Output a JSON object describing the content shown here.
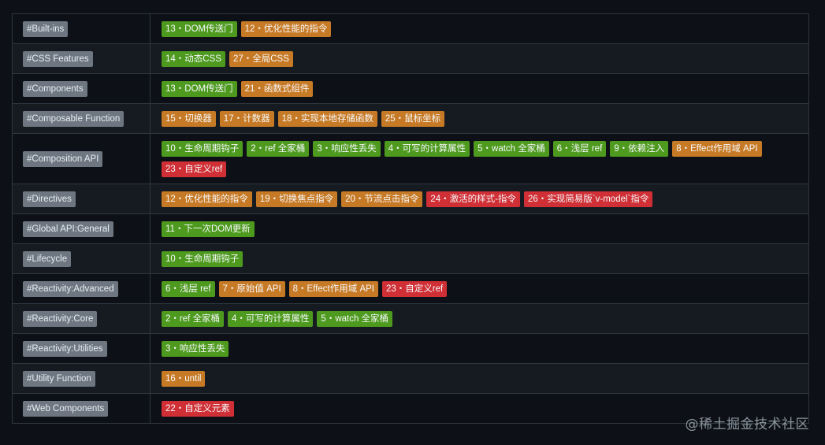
{
  "colors": {
    "background": "#0d1117",
    "row_alt": "#161b22",
    "border": "#30363d",
    "category_badge": "#6e7681",
    "easy": "#4d9a1e",
    "medium": "#c77a25",
    "hard": "#cf2f35"
  },
  "rows": [
    {
      "category": "#Built-ins",
      "items": [
        {
          "label": "13・DOM传送门",
          "level": "green"
        },
        {
          "label": "12・优化性能的指令",
          "level": "orange"
        }
      ]
    },
    {
      "category": "#CSS Features",
      "items": [
        {
          "label": "14・动态CSS",
          "level": "green"
        },
        {
          "label": "27・全局CSS",
          "level": "orange"
        }
      ]
    },
    {
      "category": "#Components",
      "items": [
        {
          "label": "13・DOM传送门",
          "level": "green"
        },
        {
          "label": "21・函数式组件",
          "level": "orange"
        }
      ]
    },
    {
      "category": "#Composable Function",
      "items": [
        {
          "label": "15・切换器",
          "level": "orange"
        },
        {
          "label": "17・计数器",
          "level": "orange"
        },
        {
          "label": "18・实现本地存储函数",
          "level": "orange"
        },
        {
          "label": "25・鼠标坐标",
          "level": "orange"
        }
      ]
    },
    {
      "category": "#Composition API",
      "items": [
        {
          "label": "10・生命周期钩子",
          "level": "green"
        },
        {
          "label": "2・ref 全家桶",
          "level": "green"
        },
        {
          "label": "3・响应性丢失",
          "level": "green"
        },
        {
          "label": "4・可写的计算属性",
          "level": "green"
        },
        {
          "label": "5・watch 全家桶",
          "level": "green"
        },
        {
          "label": "6・浅层 ref",
          "level": "green"
        },
        {
          "label": "9・依赖注入",
          "level": "green"
        },
        {
          "label": "8・Effect作用域 API",
          "level": "orange"
        },
        {
          "label": "23・自定义ref",
          "level": "red"
        }
      ]
    },
    {
      "category": "#Directives",
      "items": [
        {
          "label": "12・优化性能的指令",
          "level": "orange"
        },
        {
          "label": "19・切换焦点指令",
          "level": "orange"
        },
        {
          "label": "20・节流点击指令",
          "level": "orange"
        },
        {
          "label": "24・激活的样式-指令",
          "level": "red"
        },
        {
          "label": "26・实现简易版`v-model`指令",
          "level": "red"
        }
      ]
    },
    {
      "category": "#Global API:General",
      "items": [
        {
          "label": "11・下一次DOM更新",
          "level": "green"
        }
      ]
    },
    {
      "category": "#Lifecycle",
      "items": [
        {
          "label": "10・生命周期钩子",
          "level": "green"
        }
      ]
    },
    {
      "category": "#Reactivity:Advanced",
      "items": [
        {
          "label": "6・浅层 ref",
          "level": "green"
        },
        {
          "label": "7・原始值 API",
          "level": "orange"
        },
        {
          "label": "8・Effect作用域 API",
          "level": "orange"
        },
        {
          "label": "23・自定义ref",
          "level": "red"
        }
      ]
    },
    {
      "category": "#Reactivity:Core",
      "items": [
        {
          "label": "2・ref 全家桶",
          "level": "green"
        },
        {
          "label": "4・可写的计算属性",
          "level": "green"
        },
        {
          "label": "5・watch 全家桶",
          "level": "green"
        }
      ]
    },
    {
      "category": "#Reactivity:Utilities",
      "items": [
        {
          "label": "3・响应性丢失",
          "level": "green"
        }
      ]
    },
    {
      "category": "#Utility Function",
      "items": [
        {
          "label": "16・until",
          "level": "orange"
        }
      ]
    },
    {
      "category": "#Web Components",
      "items": [
        {
          "label": "22・自定义元素",
          "level": "red"
        }
      ]
    }
  ],
  "watermark": "@稀土掘金技术社区"
}
